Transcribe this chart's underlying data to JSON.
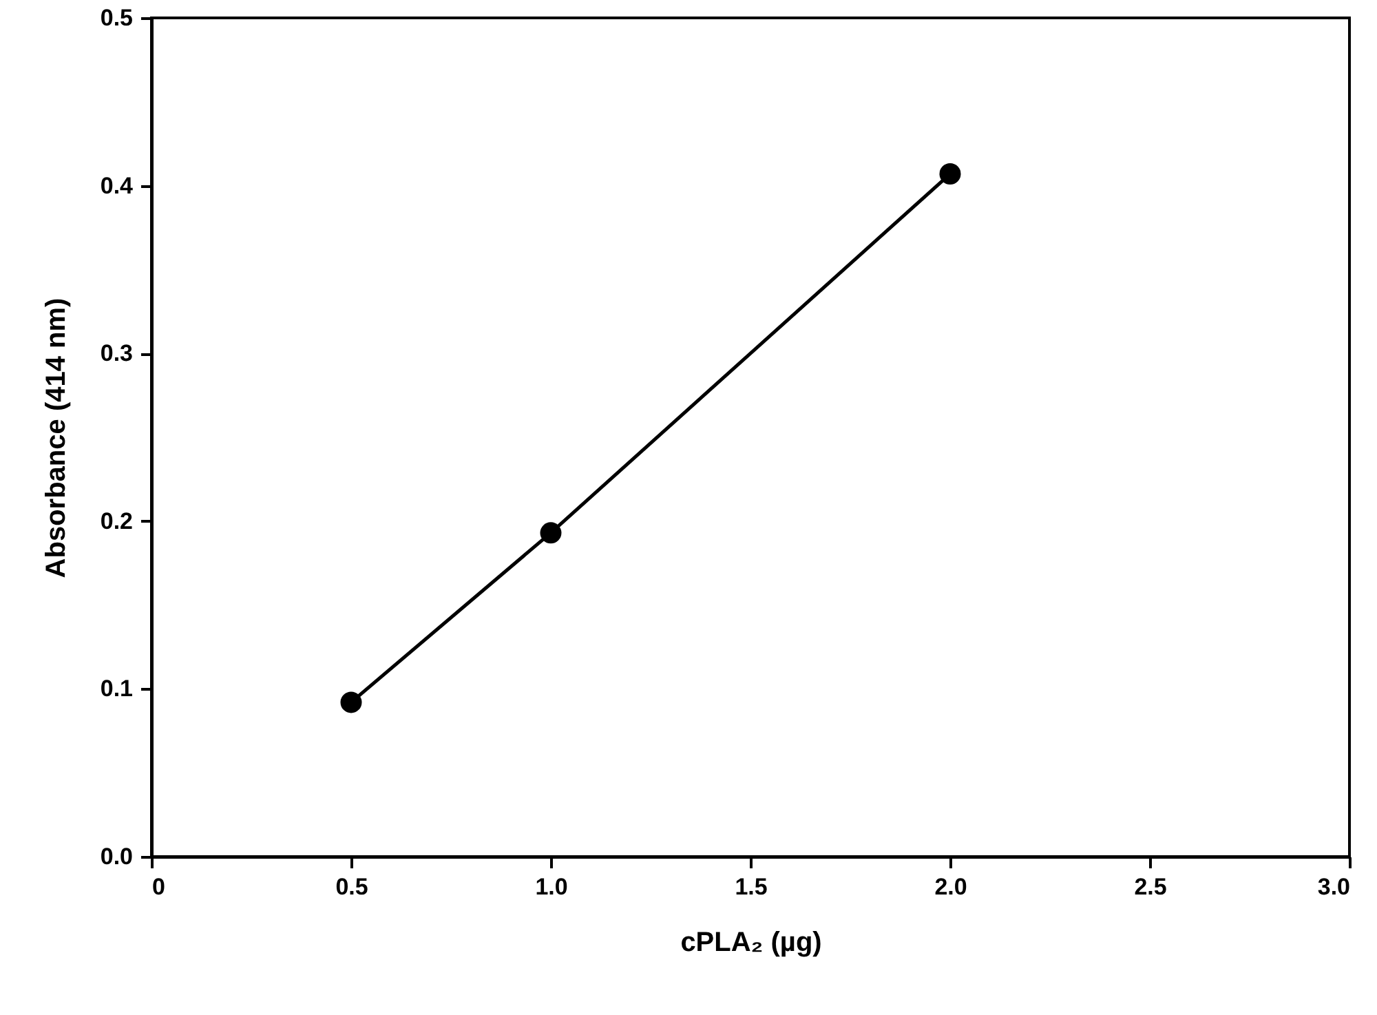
{
  "chart_data": {
    "type": "line",
    "xlabel": "cPLA₂ (µg)",
    "ylabel": "Absorbance (414 nm)",
    "x": [
      0.5,
      1.0,
      2.0
    ],
    "series": [
      {
        "color": "#000000",
        "values": [
          0.092,
          0.193,
          0.407
        ]
      }
    ],
    "xlim": [
      0,
      3
    ],
    "xticks": [
      0,
      0.5,
      {
        "value": 1,
        "label": "1.0"
      },
      1.5,
      {
        "value": 2,
        "label": "2.0"
      },
      2.5,
      {
        "value": 3,
        "label": "3.0"
      }
    ],
    "ylim": [
      0,
      0.5
    ],
    "yticks": [
      {
        "value": 0,
        "label": "0.0"
      },
      0.1,
      0.2,
      0.3,
      0.4,
      0.5
    ],
    "grid": false,
    "marker": "circle",
    "line_style": "solid"
  }
}
